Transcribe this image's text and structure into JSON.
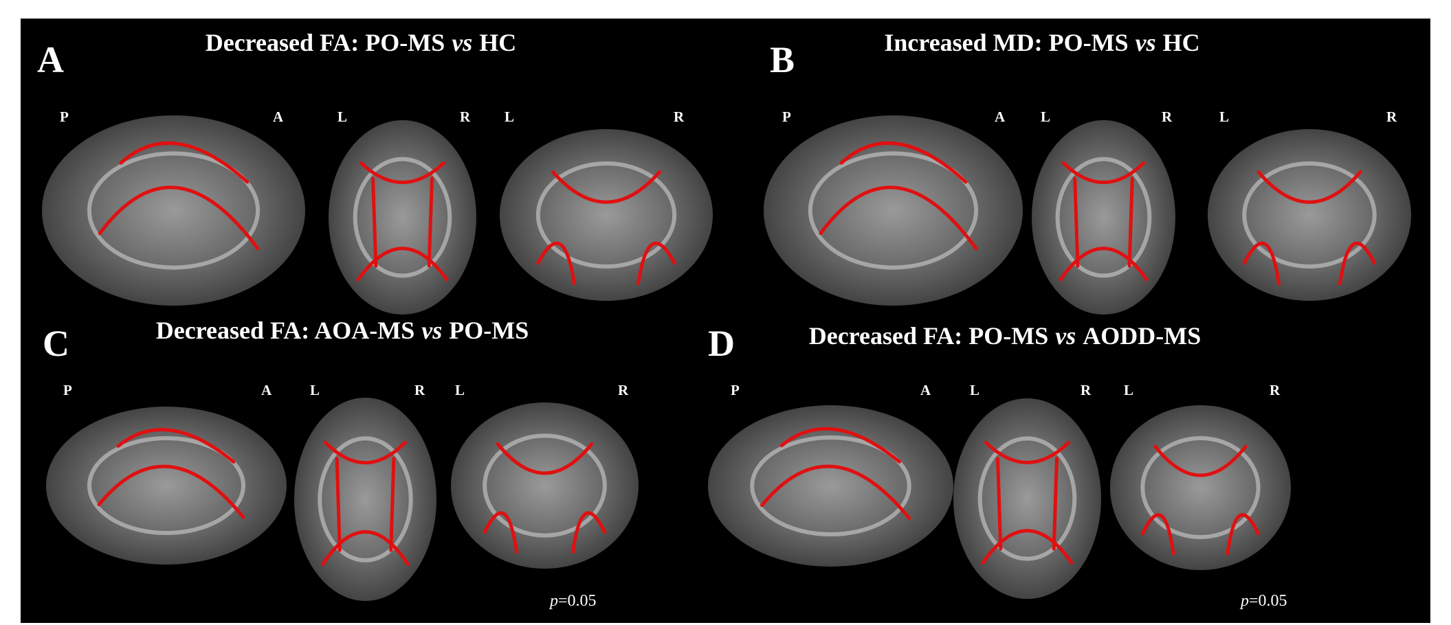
{
  "panels": [
    {
      "letter": "A",
      "title": [
        "Decreased FA: PO-MS",
        "vs",
        "HC"
      ],
      "views": [
        {
          "labels": [
            "P",
            "A"
          ]
        },
        {
          "labels": [
            "L",
            "R"
          ]
        },
        {
          "labels": [
            "L",
            "R"
          ]
        }
      ]
    },
    {
      "letter": "B",
      "title": [
        "Increased MD: PO-MS",
        "vs",
        "HC"
      ],
      "views": [
        {
          "labels": [
            "P",
            "A"
          ]
        },
        {
          "labels": [
            "L",
            "R"
          ]
        },
        {
          "labels": [
            "L",
            "R"
          ]
        }
      ]
    },
    {
      "letter": "C",
      "title": [
        "Decreased FA: AOA-MS",
        "vs",
        "PO-MS"
      ],
      "views": [
        {
          "labels": [
            "P",
            "A"
          ]
        },
        {
          "labels": [
            "L",
            "R"
          ]
        },
        {
          "labels": [
            "L",
            "R"
          ]
        }
      ],
      "threshold": [
        "p",
        "=0.05"
      ]
    },
    {
      "letter": "D",
      "title": [
        "Decreased FA: PO-MS",
        "vs",
        "AODD-MS"
      ],
      "views": [
        {
          "labels": [
            "P",
            "A"
          ]
        },
        {
          "labels": [
            "L",
            "R"
          ]
        },
        {
          "labels": [
            "L",
            "R"
          ]
        }
      ],
      "threshold": [
        "p",
        "=0.05"
      ]
    }
  ]
}
